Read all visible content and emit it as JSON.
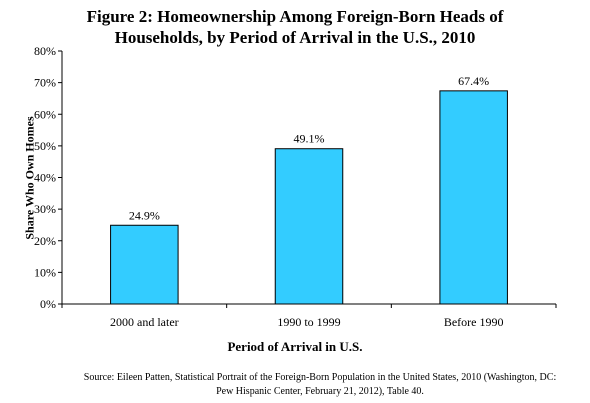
{
  "title": {
    "line1": "Figure 2: Homeownership Among Foreign-Born Heads of",
    "line2": "Households, by Period of Arrival in the U.S., 2010"
  },
  "source": {
    "line1": "Source: Eileen Patten, Statistical Portrait of the Foreign-Born Population in the United States, 2010 (Washington, DC:",
    "line2": "Pew Hispanic Center, February 21, 2012), Table 40."
  },
  "chart_data": {
    "type": "bar",
    "categories": [
      "2000 and later",
      "1990 to 1999",
      "Before 1990"
    ],
    "values": [
      24.9,
      49.1,
      67.4
    ],
    "data_labels": [
      "24.9%",
      "49.1%",
      "67.4%"
    ],
    "xlabel": "Period of Arrival in U.S.",
    "ylabel": "Share Who Own Homes",
    "ylim": [
      0,
      80
    ],
    "yticks": [
      0,
      10,
      20,
      30,
      40,
      50,
      60,
      70,
      80
    ],
    "ytick_labels": [
      "0%",
      "10%",
      "20%",
      "30%",
      "40%",
      "50%",
      "60%",
      "70%",
      "80%"
    ],
    "grid": false,
    "legend": "none",
    "bar_color": "#33ccff",
    "bar_edge_color": "#000000"
  }
}
